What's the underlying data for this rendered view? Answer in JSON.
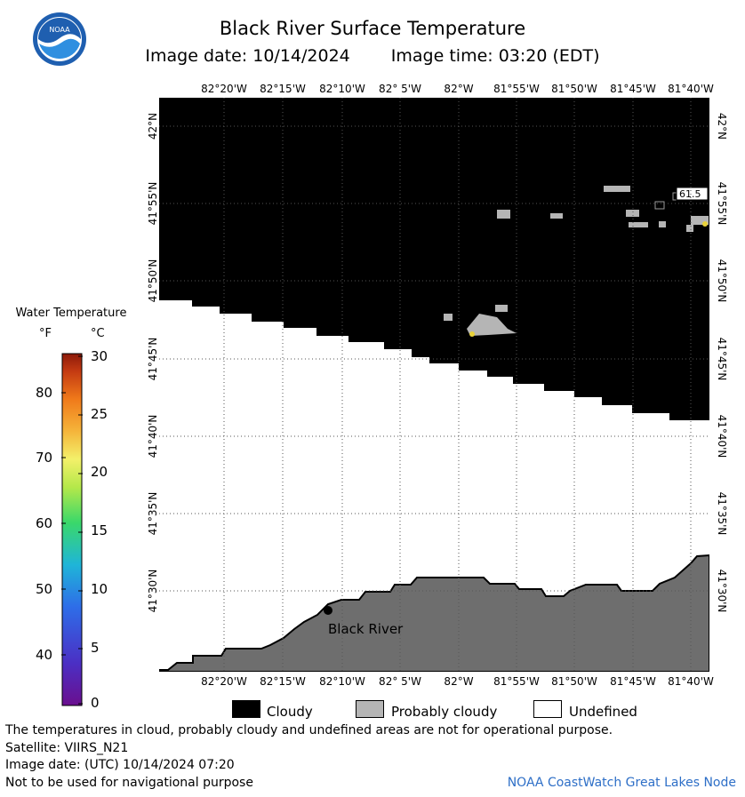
{
  "header": {
    "title": "Black River Surface Temperature",
    "image_date": "Image date: 10/14/2024",
    "image_time": "Image time: 03:20 (EDT)",
    "logo_text": "NOAA"
  },
  "map": {
    "lon_labels_top": [
      "82°20'W",
      "82°15'W",
      "82°10'W",
      "82° 5'W",
      "82°W",
      "81°55'W",
      "81°50'W",
      "81°45'W",
      "81°40'W"
    ],
    "lon_labels_bottom": [
      "82°20'W",
      "82°15'W",
      "82°10'W",
      "82° 5'W",
      "82°W",
      "81°55'W",
      "81°50'W",
      "81°45'W",
      "81°40'W"
    ],
    "lat_labels_left": [
      "42°N",
      "41°55'N",
      "41°50'N",
      "41°45'N",
      "41°40'N",
      "41°35'N",
      "41°30'N"
    ],
    "lat_labels_right": [
      "42°N",
      "41°55'N",
      "41°50'N",
      "41°45'N",
      "41°40'N",
      "41°35'N",
      "41°30'N"
    ],
    "location_label": "Black River",
    "temp_label": "61.5",
    "colors": {
      "cloudy": "#000000",
      "probably_cloudy": "#b5b5b5",
      "undefined": "#ffffff",
      "land": "#6e6e6e"
    }
  },
  "legend": {
    "title": "Water Temperature",
    "unit_f": "°F",
    "unit_c": "°C",
    "f_ticks": [
      "80",
      "70",
      "60",
      "50",
      "40"
    ],
    "c_ticks": [
      "30",
      "25",
      "20",
      "15",
      "10",
      "5",
      "0"
    ]
  },
  "key": {
    "cloudy": "Cloudy",
    "probably_cloudy": "Probably cloudy",
    "undefined": "Undefined"
  },
  "footer": {
    "disclaimer": "The temperatures in cloud, probably cloudy and undefined areas are not for operational purpose.",
    "satellite": "Satellite: VIIRS_N21",
    "utc_date": "Image date: (UTC) 10/14/2024  07:20",
    "nav_warning": "Not to be used for navigational purpose",
    "credit": "NOAA CoastWatch Great Lakes Node"
  }
}
